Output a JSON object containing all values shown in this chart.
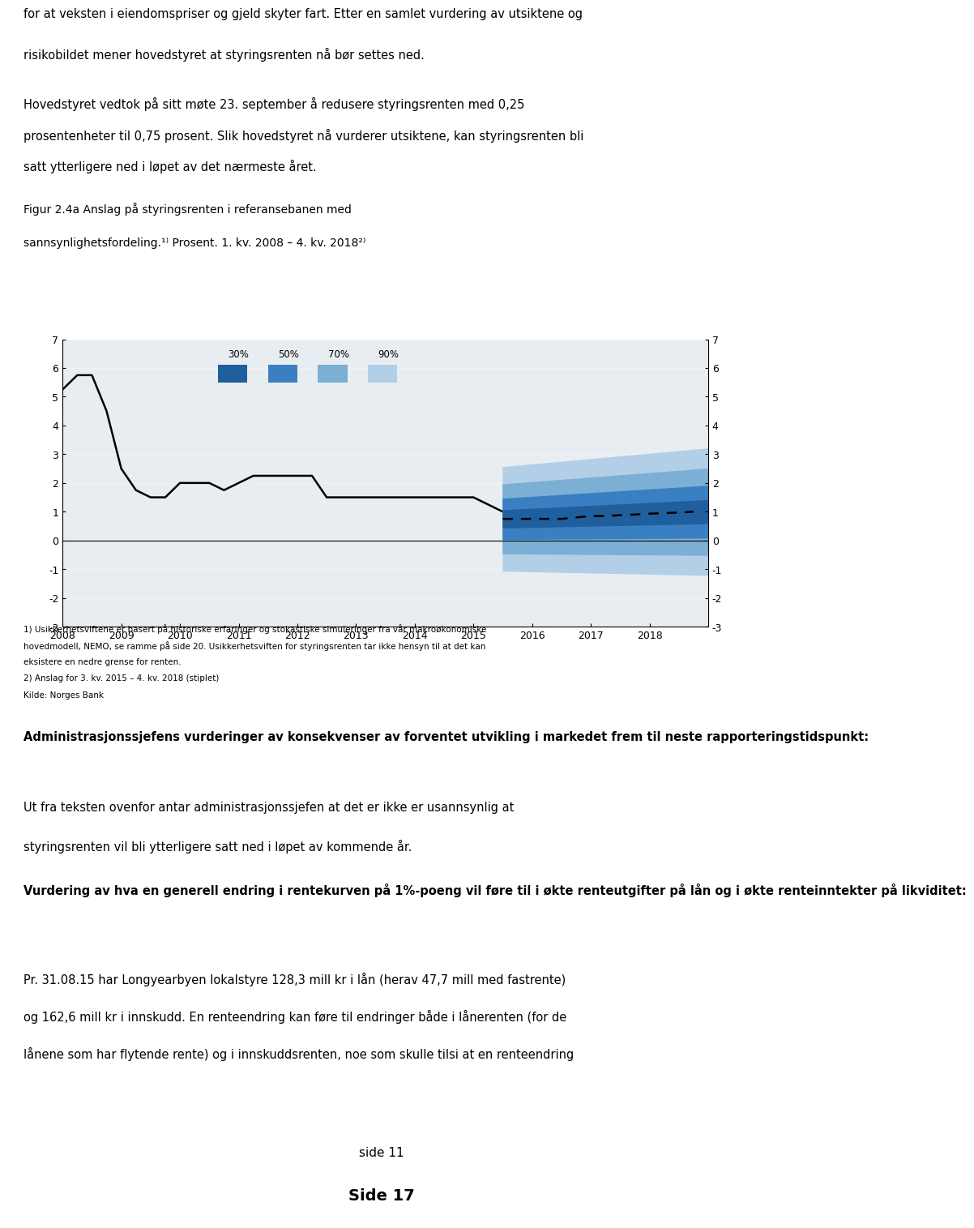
{
  "page_bg": "#ffffff",
  "fig_bg": "#e8edf2",
  "top_texts": [
    "for at veksten i eiendomspriser og gjeld skyter fart. Etter en samlet vurdering av utsiktene og",
    "risikobildet mener hovedstyret at styringsrenten nå bør settes ned."
  ],
  "para1": [
    "Hovedstyret vedtok på sitt møte 23. september å redusere styringsrenten med 0,25",
    "prosentenheter til 0,75 prosent. Slik hovedstyret nå vurderer utsiktene, kan styringsrenten bli",
    "satt ytterligere ned i løpet av det nærmeste året."
  ],
  "fig_title_line1": "Figur 2.4a Anslag på styringsrenten i referansebanen med",
  "fig_title_line2": "sannsynlighetsfordeling.¹⁾ Prosent. 1. kv. 2008 – 4. kv. 2018²⁾",
  "ylabel_left": "",
  "yticks": [
    -3,
    -2,
    -1,
    0,
    1,
    2,
    3,
    4,
    5,
    6,
    7
  ],
  "xtick_labels": [
    "2008",
    "2009",
    "2010",
    "2011",
    "2012",
    "2013",
    "2014",
    "2015",
    "2016",
    "2017",
    "2018"
  ],
  "ylim": [
    -3,
    7
  ],
  "footnote1": "1) Usikkerhetsviftene er basert på historiske erfaringer og stokastiske simuleringer fra vår makroøkonomiske",
  "footnote2": "hovedmodell, NEMO, se ramme på side 20. Usikkerhetsviften for styringsrenten tar ikke hensyn til at det kan",
  "footnote3": "eksistere en nedre grense for renten.",
  "footnote4": "2) Anslag for 3. kv. 2015 – 4. kv. 2018 (stiplet)",
  "footnote5": "Kilde: Norges Bank",
  "legend_labels": [
    "30%",
    "50%",
    "70%",
    "90%"
  ],
  "legend_colors": [
    "#1f5f9e",
    "#3a7fc1",
    "#7bafd4",
    "#b3cfe8"
  ],
  "section_title": "Administrasjonssjefens vurderinger av konsekvenser av forventet utvikling i markedet frem til neste rapporteringstidspunkt:",
  "section_body": "Ut fra teksten ovenfor antar administrasjonssjefen at det er ikke er usannsynlig at\nstyringsrenten vil bli ytterligere satt ned i løpet av kommende år.",
  "vurdering_title": "Vurdering av hva en generell endring i rentekurven på 1%-poeng vil føre til i økte renteutgifter på lån og i økte renteinntekter på likviditet:",
  "vurdering_body": "Pr. 31.08.15 har Longyearbyen lokalstyre 128,3 mill kr i lån (herav 47,7 mill med fastrente)\nog 162,6 mill kr i innskudd. En renteendring kan føre til endringer både i lånerenten (for de\nlånene som har flytende rente) og i innskuddsrenten, noe som skulle tilsi at en renteendring",
  "page_label": "side 11",
  "side_label": "Side 17"
}
